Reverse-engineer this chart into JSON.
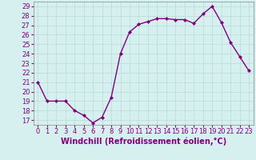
{
  "x": [
    0,
    1,
    2,
    3,
    4,
    5,
    6,
    7,
    8,
    9,
    10,
    11,
    12,
    13,
    14,
    15,
    16,
    17,
    18,
    19,
    20,
    21,
    22,
    23
  ],
  "y": [
    21,
    19,
    19,
    19,
    18,
    17.5,
    16.7,
    17.3,
    19.4,
    24,
    26.3,
    27.1,
    27.4,
    27.7,
    27.7,
    27.6,
    27.6,
    27.2,
    28.2,
    29.0,
    27.3,
    25.2,
    23.7,
    22.2
  ],
  "line_color": "#800080",
  "marker": "D",
  "marker_size": 2,
  "bg_color": "#d6f0f0",
  "grid_color": "#b8dada",
  "xlabel": "Windchill (Refroidissement éolien,°C)",
  "xlabel_fontsize": 7,
  "text_color": "#800080",
  "yticks": [
    17,
    18,
    19,
    20,
    21,
    22,
    23,
    24,
    25,
    26,
    27,
    28,
    29
  ],
  "xticks": [
    0,
    1,
    2,
    3,
    4,
    5,
    6,
    7,
    8,
    9,
    10,
    11,
    12,
    13,
    14,
    15,
    16,
    17,
    18,
    19,
    20,
    21,
    22,
    23
  ],
  "ylim": [
    16.5,
    29.5
  ],
  "xlim": [
    -0.5,
    23.5
  ],
  "tick_fontsize": 6,
  "line_width": 1.0
}
